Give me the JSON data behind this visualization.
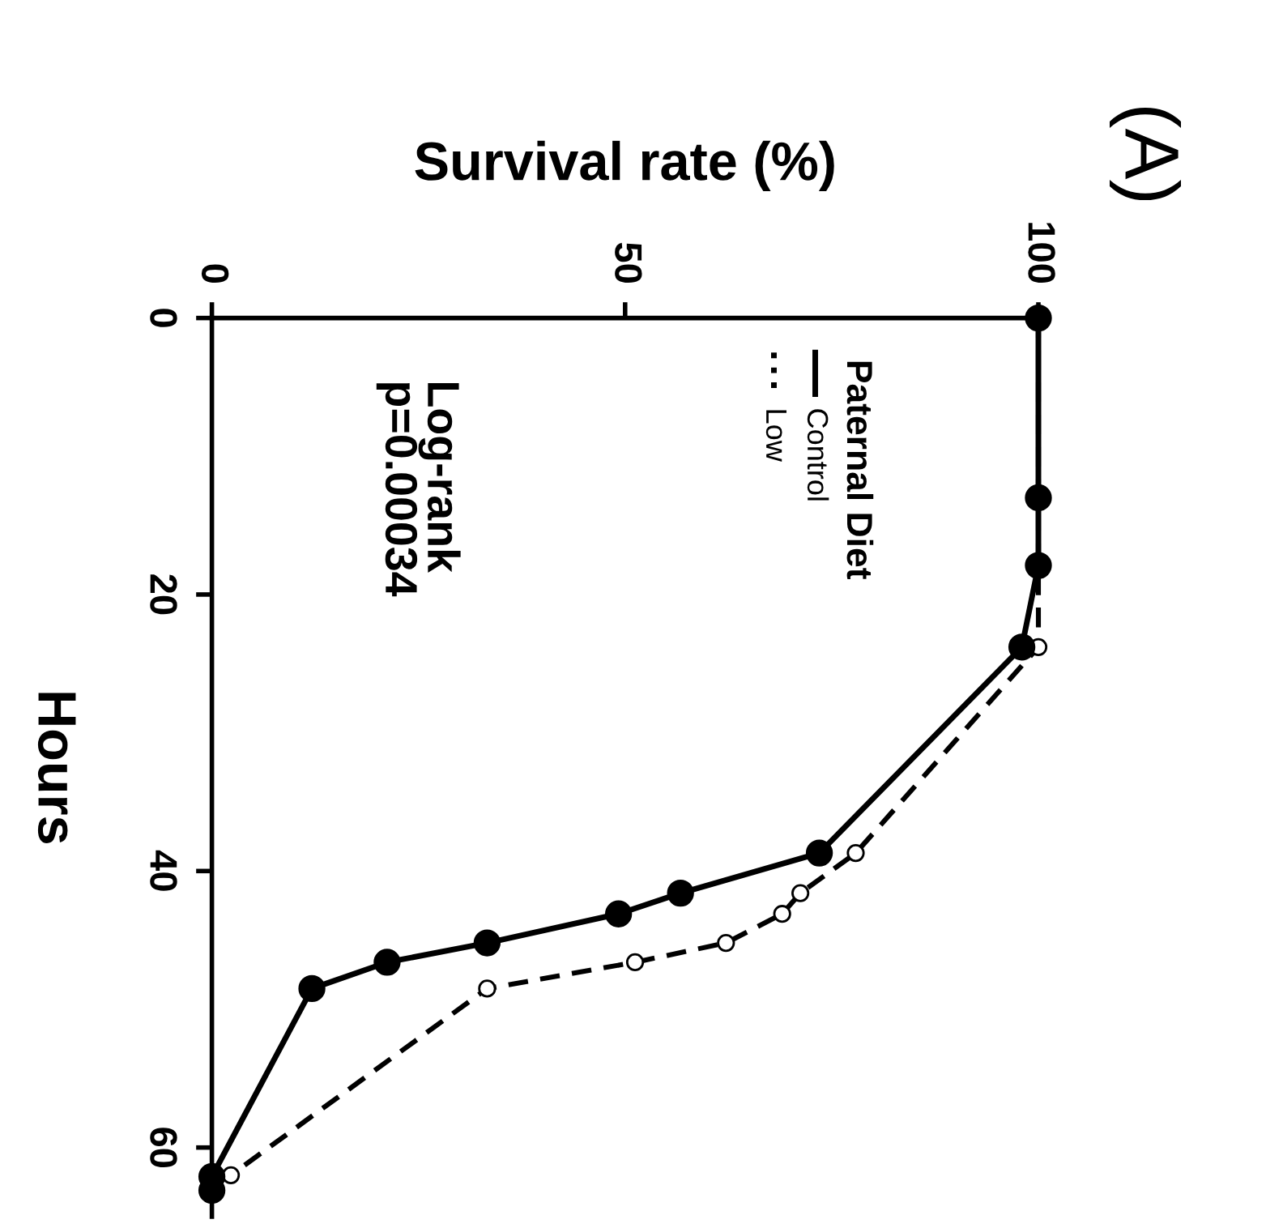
{
  "chart_data": {
    "type": "line",
    "title": "(A)",
    "xlabel": "Survival rate (%)",
    "ylabel": "Hours",
    "legend_title": "Paternal Diet",
    "series": [
      {
        "name": "Control",
        "color": "#000000",
        "line_style": "solid",
        "x": [
          100,
          100,
          100,
          98,
          73.5,
          56.7,
          49.2,
          33.3,
          21.2,
          12.1,
          0,
          0
        ],
        "values": [
          0,
          13.0,
          17.9,
          23.8,
          38.7,
          41.6,
          43.1,
          45.2,
          46.6,
          48.5,
          62.1,
          63.1
        ]
      },
      {
        "name": "Low",
        "color": "#000000",
        "line_style": "dashed",
        "x": [
          100,
          100,
          77.9,
          71.2,
          69.0,
          62.2,
          51.2,
          33.3,
          2.3
        ],
        "values": [
          0,
          23.8,
          38.7,
          41.6,
          43.1,
          45.2,
          46.6,
          48.5,
          62.0
        ]
      }
    ],
    "marker": "circle",
    "legend": "top right",
    "grid": false,
    "xlim": [
      0,
      100
    ],
    "xticks": [
      0,
      50,
      100
    ],
    "ylim": [
      65,
      0
    ],
    "yticks": [
      0,
      20,
      40,
      60
    ],
    "annotations": [
      "Log-rank\np=0.00034"
    ]
  }
}
